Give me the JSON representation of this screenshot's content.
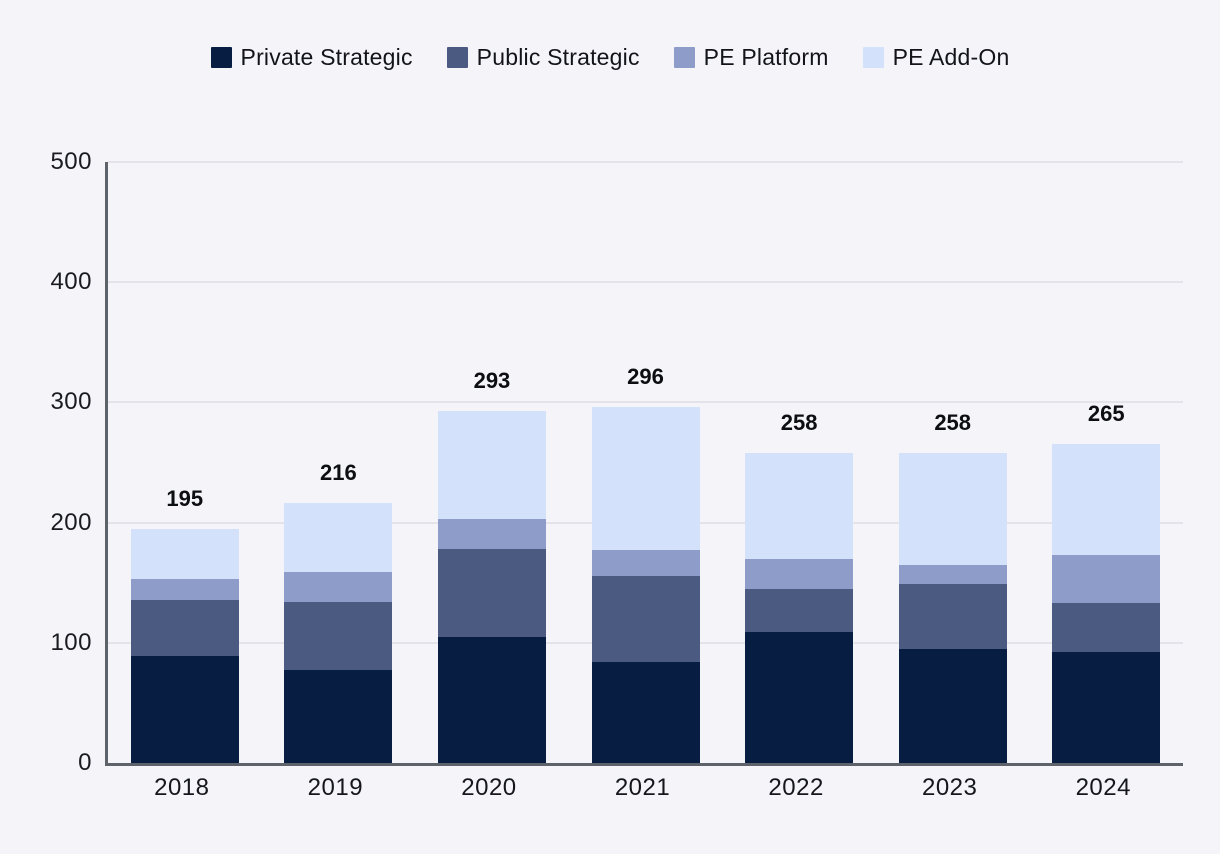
{
  "chart_data": {
    "type": "bar",
    "stacked": true,
    "title": "",
    "xlabel": "",
    "ylabel": "",
    "categories": [
      "2018",
      "2019",
      "2020",
      "2021",
      "2022",
      "2023",
      "2024"
    ],
    "series": [
      {
        "name": "Private Strategic",
        "color": "#071E42",
        "values": [
          89,
          77,
          105,
          84,
          109,
          95,
          92
        ]
      },
      {
        "name": "Public Strategic",
        "color": "#4A5A80",
        "values": [
          47,
          57,
          73,
          72,
          36,
          54,
          41
        ]
      },
      {
        "name": "PE Platform",
        "color": "#8E9CC9",
        "values": [
          17,
          25,
          25,
          21,
          25,
          16,
          40
        ]
      },
      {
        "name": "PE Add-On",
        "color": "#D4E1FB",
        "values": [
          42,
          57,
          90,
          119,
          88,
          93,
          92
        ]
      }
    ],
    "totals": [
      195,
      216,
      293,
      296,
      258,
      258,
      265
    ],
    "ylim": [
      0,
      500
    ],
    "yticks": [
      0,
      100,
      200,
      300,
      400,
      500
    ],
    "grid": true,
    "legend_position": "top"
  },
  "colors": {
    "background": "#F4F4F9",
    "gridline": "#E3E3E9",
    "axis_line": "#5D626B",
    "tick_text": "#1A1B20",
    "total_text": "#0D0E12"
  }
}
